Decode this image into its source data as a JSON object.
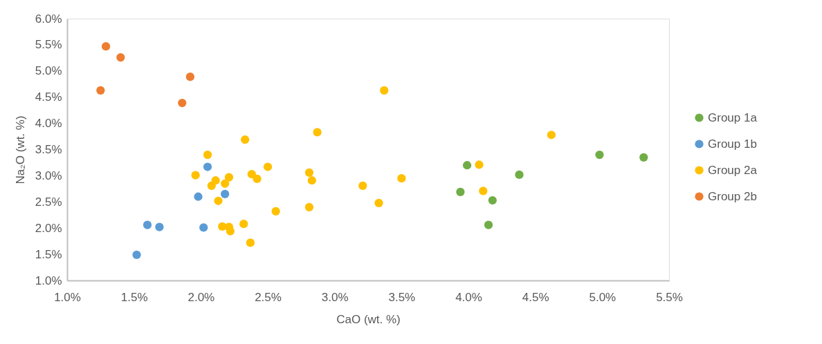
{
  "chart_data": {
    "type": "scatter",
    "xlabel": "CaO (wt. %)",
    "ylabel": "Na₂O (wt. %)",
    "xlim": [
      1.0,
      5.5
    ],
    "ylim": [
      1.0,
      6.0
    ],
    "xticks": [
      {
        "value": 1.0,
        "label": "1.0%"
      },
      {
        "value": 1.5,
        "label": "1.5%"
      },
      {
        "value": 2.0,
        "label": "2.0%"
      },
      {
        "value": 2.5,
        "label": "2.5%"
      },
      {
        "value": 3.0,
        "label": "3.0%"
      },
      {
        "value": 3.5,
        "label": "3.5%"
      },
      {
        "value": 4.0,
        "label": "4.0%"
      },
      {
        "value": 4.5,
        "label": "4.5%"
      },
      {
        "value": 5.0,
        "label": "5.0%"
      },
      {
        "value": 5.5,
        "label": "5.5%"
      }
    ],
    "yticks": [
      {
        "value": 1.0,
        "label": "1.0%"
      },
      {
        "value": 1.5,
        "label": "1.5%"
      },
      {
        "value": 2.0,
        "label": "2.0%"
      },
      {
        "value": 2.5,
        "label": "2.5%"
      },
      {
        "value": 3.0,
        "label": "3.0%"
      },
      {
        "value": 3.5,
        "label": "3.5%"
      },
      {
        "value": 4.0,
        "label": "4.0%"
      },
      {
        "value": 4.5,
        "label": "4.5%"
      },
      {
        "value": 5.0,
        "label": "5.0%"
      },
      {
        "value": 5.5,
        "label": "5.5%"
      },
      {
        "value": 6.0,
        "label": "6.0%"
      }
    ],
    "grid": false,
    "legend": "right",
    "marker": "circle",
    "series": [
      {
        "name": "Group 1a",
        "color": "#70ad47",
        "x": [
          3.99,
          3.94,
          4.38,
          4.18,
          4.15,
          4.98,
          5.31
        ],
        "values": [
          3.2,
          2.69,
          3.02,
          2.53,
          2.06,
          3.4,
          3.35
        ]
      },
      {
        "name": "Group 1b",
        "color": "#5b9bd5",
        "x": [
          2.05,
          1.98,
          2.18,
          1.6,
          1.69,
          2.02,
          1.52
        ],
        "values": [
          3.17,
          2.6,
          2.65,
          2.06,
          2.02,
          2.01,
          1.49
        ]
      },
      {
        "name": "Group 2a",
        "color": "#ffc000",
        "x": [
          2.05,
          1.96,
          2.11,
          2.08,
          2.18,
          2.21,
          2.13,
          2.33,
          2.38,
          2.42,
          2.5,
          2.16,
          2.21,
          2.22,
          2.32,
          2.37,
          2.56,
          2.81,
          2.83,
          2.81,
          2.87,
          3.21,
          3.37,
          4.62,
          4.08,
          4.11,
          3.5,
          3.33
        ],
        "values": [
          3.4,
          3.01,
          2.91,
          2.81,
          2.85,
          2.97,
          2.52,
          3.69,
          3.03,
          2.94,
          3.17,
          2.03,
          2.02,
          1.94,
          2.08,
          1.72,
          2.32,
          3.06,
          2.91,
          2.4,
          3.83,
          2.81,
          4.63,
          3.78,
          3.21,
          2.71,
          2.95,
          2.48
        ]
      },
      {
        "name": "Group 2b",
        "color": "#ed7d31",
        "x": [
          1.29,
          1.4,
          1.25,
          1.92,
          1.86
        ],
        "values": [
          5.47,
          5.26,
          4.63,
          4.89,
          4.39
        ]
      }
    ]
  }
}
